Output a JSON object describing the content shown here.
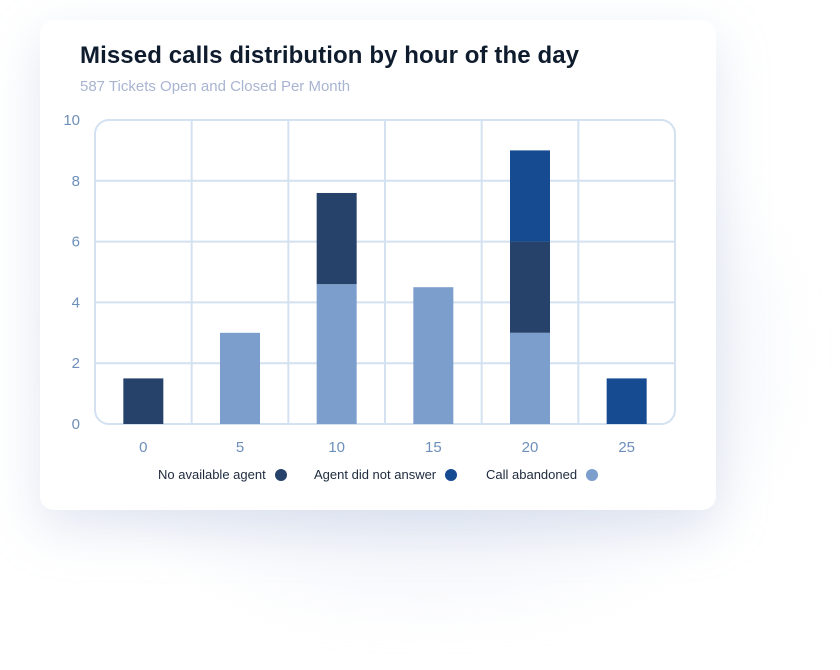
{
  "chart_title": "Missed calls distribution by hour of the day",
  "chart_subtitle": "587 Tickets Open and Closed Per Month",
  "colors": {
    "no_agent": "#27426a",
    "did_not_answer": "#164a91",
    "abandoned": "#7b9ecc",
    "grid": "#d3e1f1",
    "tick_label": "#6d8fb9"
  },
  "legend": [
    {
      "label": "No available agent",
      "series": "no_agent"
    },
    {
      "label": "Agent did not answer",
      "series": "did_not_answer"
    },
    {
      "label": "Call abandoned",
      "series": "abandoned"
    }
  ],
  "chart_data": {
    "type": "bar",
    "stacked": true,
    "title": "Missed calls distribution by hour of the day",
    "subtitle": "587 Tickets Open and Closed Per Month",
    "categories": [
      "0",
      "5",
      "10",
      "15",
      "20",
      "25"
    ],
    "series": [
      {
        "name": "No available agent",
        "key": "no_agent",
        "values": [
          1.5,
          0,
          3,
          0,
          3,
          0
        ]
      },
      {
        "name": "Agent did not answer",
        "key": "did_not_answer",
        "values": [
          0,
          0,
          0,
          0,
          3,
          1.5
        ]
      },
      {
        "name": "Call abandoned",
        "key": "abandoned",
        "values": [
          0,
          3,
          4.6,
          4.5,
          3,
          0
        ]
      }
    ],
    "stack_order": [
      "abandoned",
      "no_agent",
      "did_not_answer"
    ],
    "ylim": [
      0,
      10
    ],
    "yticks": [
      "0",
      "2",
      "4",
      "6",
      "8",
      "10"
    ],
    "xlabel": "",
    "ylabel": "",
    "grid": true,
    "legend_position": "bottom"
  }
}
